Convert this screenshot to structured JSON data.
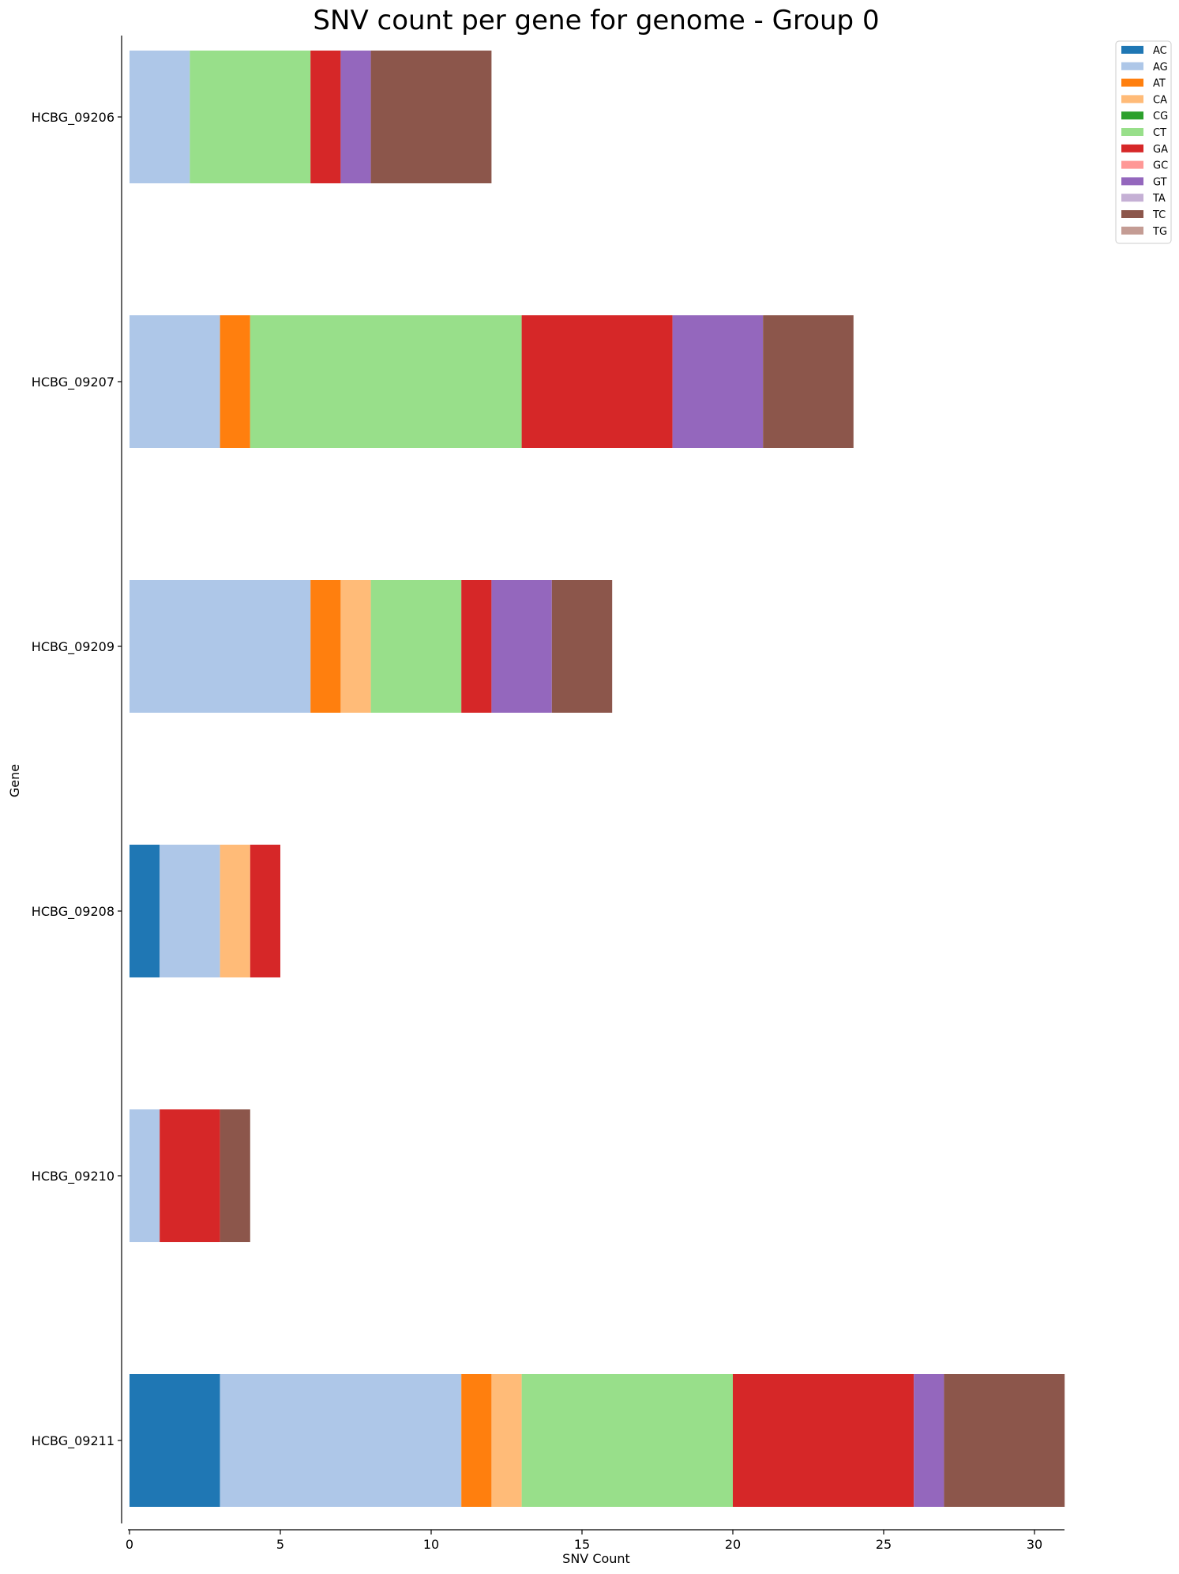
{
  "chart_data": {
    "type": "bar",
    "orientation": "horizontal",
    "stacked": true,
    "title": "SNV count per gene for genome - Group 0",
    "xlabel": "SNV Count",
    "ylabel": "Gene",
    "xlim": [
      0,
      31
    ],
    "xticks": [
      0,
      5,
      10,
      15,
      20,
      25,
      30
    ],
    "grid": false,
    "legend_position": "top-right",
    "categories": [
      "HCBG_09206",
      "HCBG_09207",
      "HCBG_09209",
      "HCBG_09208",
      "HCBG_09210",
      "HCBG_09211"
    ],
    "series": [
      {
        "name": "AC",
        "color": "#1f77b4",
        "values": [
          0,
          0,
          0,
          1,
          0,
          3
        ]
      },
      {
        "name": "AG",
        "color": "#aec7e8",
        "values": [
          2,
          3,
          6,
          2,
          1,
          8
        ]
      },
      {
        "name": "AT",
        "color": "#ff7f0e",
        "values": [
          0,
          1,
          1,
          0,
          0,
          1
        ]
      },
      {
        "name": "CA",
        "color": "#ffbb78",
        "values": [
          0,
          0,
          1,
          1,
          0,
          1
        ]
      },
      {
        "name": "CG",
        "color": "#2ca02c",
        "values": [
          0,
          0,
          0,
          0,
          0,
          0
        ]
      },
      {
        "name": "CT",
        "color": "#98df8a",
        "values": [
          4,
          9,
          3,
          0,
          0,
          7
        ]
      },
      {
        "name": "GA",
        "color": "#d62728",
        "values": [
          1,
          5,
          1,
          1,
          2,
          6
        ]
      },
      {
        "name": "GC",
        "color": "#ff9896",
        "values": [
          0,
          0,
          0,
          0,
          0,
          0
        ]
      },
      {
        "name": "GT",
        "color": "#9467bd",
        "values": [
          1,
          3,
          2,
          0,
          0,
          1
        ]
      },
      {
        "name": "TA",
        "color": "#c5b0d5",
        "values": [
          0,
          0,
          0,
          0,
          0,
          0
        ]
      },
      {
        "name": "TC",
        "color": "#8c564b",
        "values": [
          4,
          3,
          2,
          0,
          1,
          4
        ]
      },
      {
        "name": "TG",
        "color": "#c49c94",
        "values": [
          0,
          0,
          0,
          0,
          0,
          0
        ]
      }
    ]
  }
}
